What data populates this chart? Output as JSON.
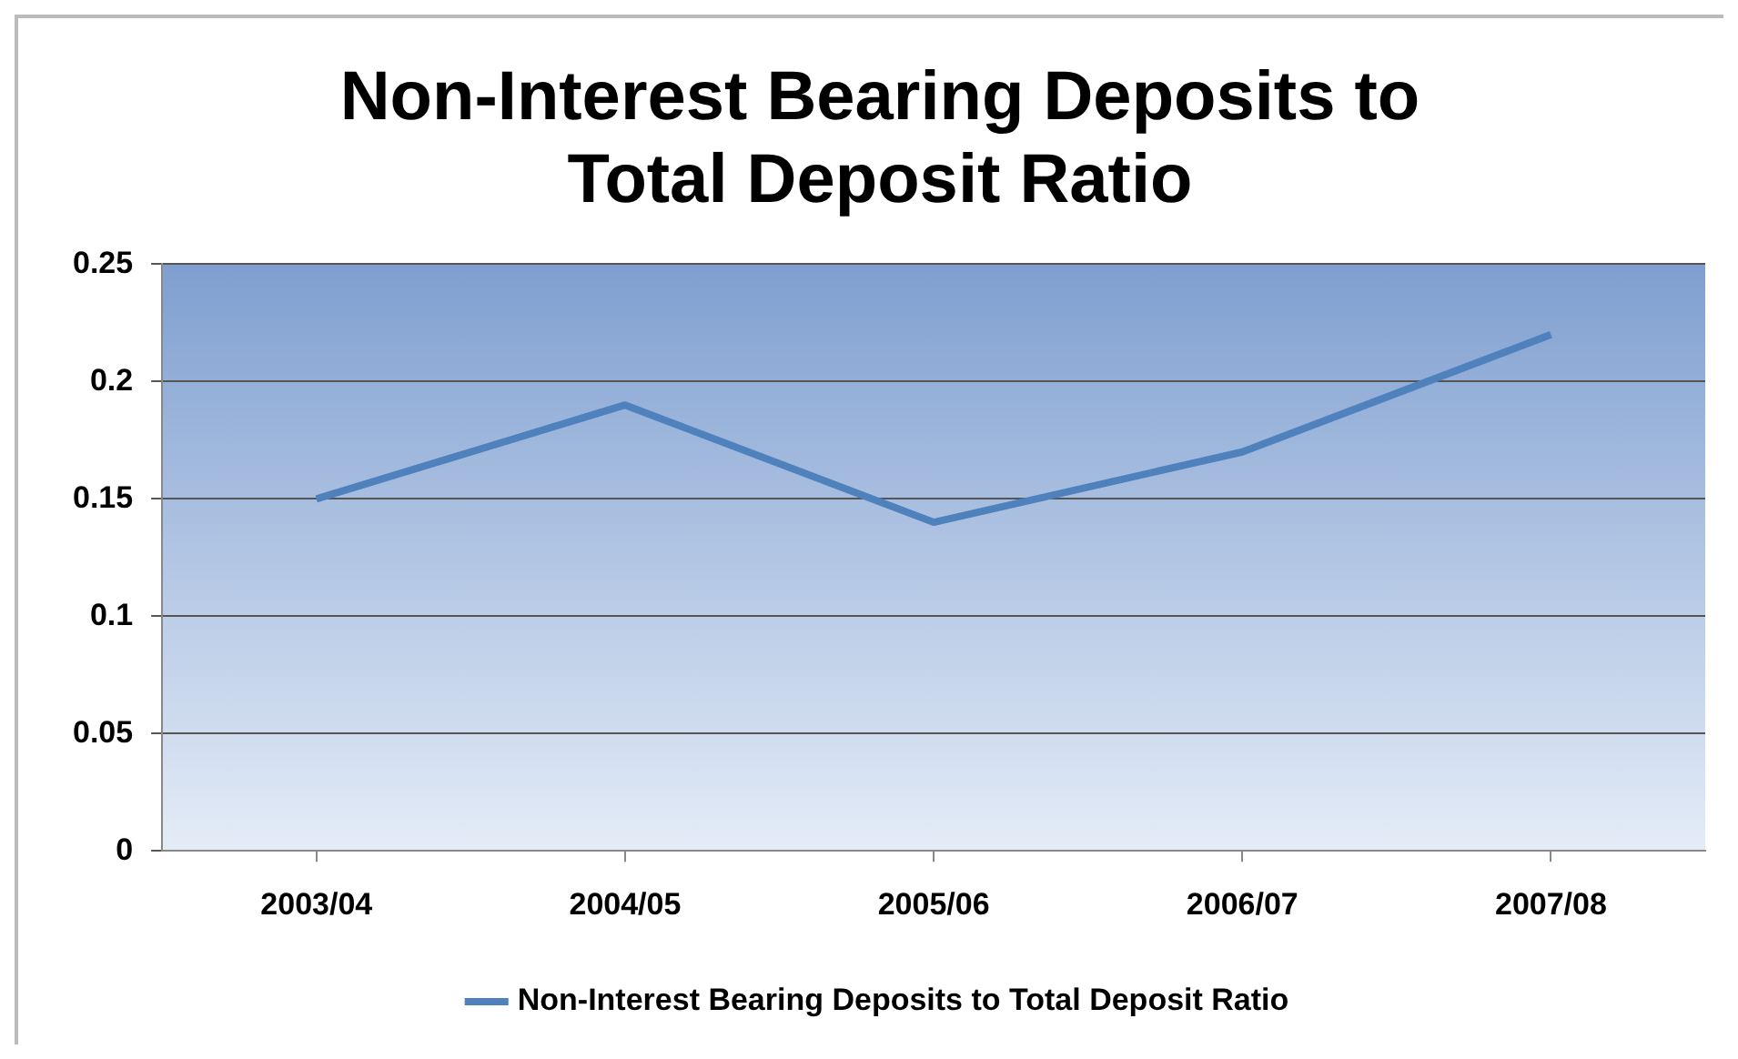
{
  "chart_data": {
    "type": "line",
    "title": [
      "Non-Interest Bearing Deposits to",
      "Total Deposit Ratio"
    ],
    "categories": [
      "2003/04",
      "2004/05",
      "2005/06",
      "2006/07",
      "2007/08"
    ],
    "series": [
      {
        "name": "Non-Interest Bearing Deposits to Total Deposit Ratio",
        "color": "#4f81bd",
        "values": [
          0.15,
          0.19,
          0.14,
          0.17,
          0.22
        ]
      }
    ],
    "ylim": [
      0,
      0.25
    ],
    "yticks": [
      0,
      0.05,
      0.1,
      0.15,
      0.2,
      0.25
    ],
    "grid": "y",
    "legend": "bottom",
    "marker": "none",
    "line_style": "solid"
  }
}
